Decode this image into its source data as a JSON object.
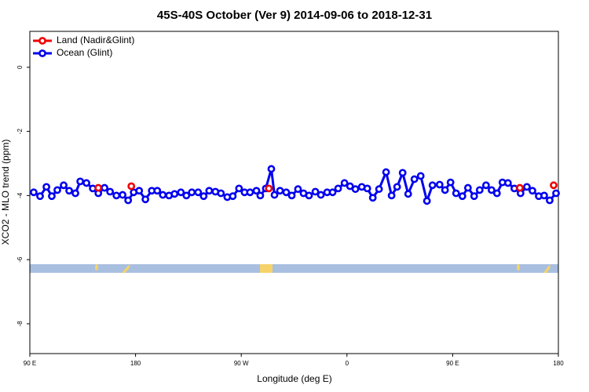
{
  "chart_data": {
    "type": "line",
    "title": "45S-40S October (Ver 9)   2014-09-06 to 2018-12-31",
    "x_label": "Longitude (deg E)",
    "y_label": "XCO2 - MLO trend (ppm)",
    "xlim": [
      90,
      540
    ],
    "xticks": [
      {
        "value": 90,
        "label": "90 E"
      },
      {
        "value": 180,
        "label": "180"
      },
      {
        "value": 270,
        "label": "90 W"
      },
      {
        "value": 360,
        "label": "0"
      },
      {
        "value": 450,
        "label": "90 E"
      },
      {
        "value": 540,
        "label": "180"
      }
    ],
    "ylim": [
      -8.93,
      1.12
    ],
    "yticks": [
      0,
      -2,
      -4,
      -6,
      -8
    ],
    "legend": "top-left",
    "series": [
      {
        "name": "Land (Nadir&Glint)",
        "color": "#ee0000",
        "markers_only": true,
        "x": [
          148.3,
          176.4,
          293.5,
          507.2,
          536.0
        ],
        "values": [
          -3.76,
          -3.71,
          -3.78,
          -3.76,
          -3.68
        ]
      },
      {
        "name": "Ocean (Glint)",
        "color": "#0000ee",
        "x": [
          93.3,
          98.7,
          104.1,
          108.7,
          113.4,
          118.8,
          123.5,
          128.8,
          132.9,
          138.2,
          143.6,
          148.3,
          153.6,
          158.3,
          163.7,
          169.0,
          173.7,
          178.4,
          183.1,
          188.4,
          193.8,
          198.5,
          203.2,
          208.5,
          213.2,
          218.6,
          223.3,
          227.9,
          233.3,
          238.0,
          242.7,
          248.0,
          252.7,
          258.1,
          262.8,
          268.1,
          272.8,
          277.5,
          282.9,
          286.2,
          290.9,
          295.6,
          298.3,
          303.0,
          308.3,
          313.0,
          318.3,
          323.0,
          327.7,
          333.1,
          337.8,
          343.1,
          347.8,
          352.5,
          357.9,
          362.6,
          367.2,
          372.6,
          377.3,
          382.0,
          387.3,
          393.3,
          398.0,
          402.7,
          407.4,
          412.1,
          417.4,
          422.8,
          428.1,
          432.8,
          438.9,
          443.5,
          448.2,
          452.9,
          458.3,
          463.0,
          468.3,
          473.0,
          478.4,
          483.1,
          487.7,
          492.4,
          497.1,
          502.5,
          507.8,
          513.2,
          517.9,
          523.3,
          527.9,
          532.6,
          538.0
        ],
        "values": [
          -3.9,
          -4.02,
          -3.73,
          -4.02,
          -3.83,
          -3.68,
          -3.85,
          -3.93,
          -3.56,
          -3.61,
          -3.78,
          -3.93,
          -3.76,
          -3.88,
          -4.0,
          -3.98,
          -4.15,
          -3.9,
          -3.85,
          -4.12,
          -3.85,
          -3.85,
          -3.98,
          -4.0,
          -3.95,
          -3.9,
          -4.0,
          -3.9,
          -3.9,
          -4.02,
          -3.85,
          -3.88,
          -3.93,
          -4.05,
          -4.02,
          -3.78,
          -3.9,
          -3.9,
          -3.85,
          -4.0,
          -3.78,
          -3.17,
          -3.98,
          -3.85,
          -3.9,
          -4.0,
          -3.8,
          -3.93,
          -4.0,
          -3.88,
          -3.98,
          -3.9,
          -3.9,
          -3.78,
          -3.61,
          -3.71,
          -3.8,
          -3.73,
          -3.78,
          -4.07,
          -3.8,
          -3.27,
          -4.0,
          -3.73,
          -3.29,
          -3.95,
          -3.49,
          -3.39,
          -4.17,
          -3.68,
          -3.66,
          -3.83,
          -3.59,
          -3.93,
          -4.02,
          -3.76,
          -4.02,
          -3.83,
          -3.68,
          -3.83,
          -3.93,
          -3.59,
          -3.61,
          -3.78,
          -3.93,
          -3.73,
          -3.85,
          -4.02,
          -4.0,
          -4.15,
          -3.93
        ]
      }
    ]
  }
}
